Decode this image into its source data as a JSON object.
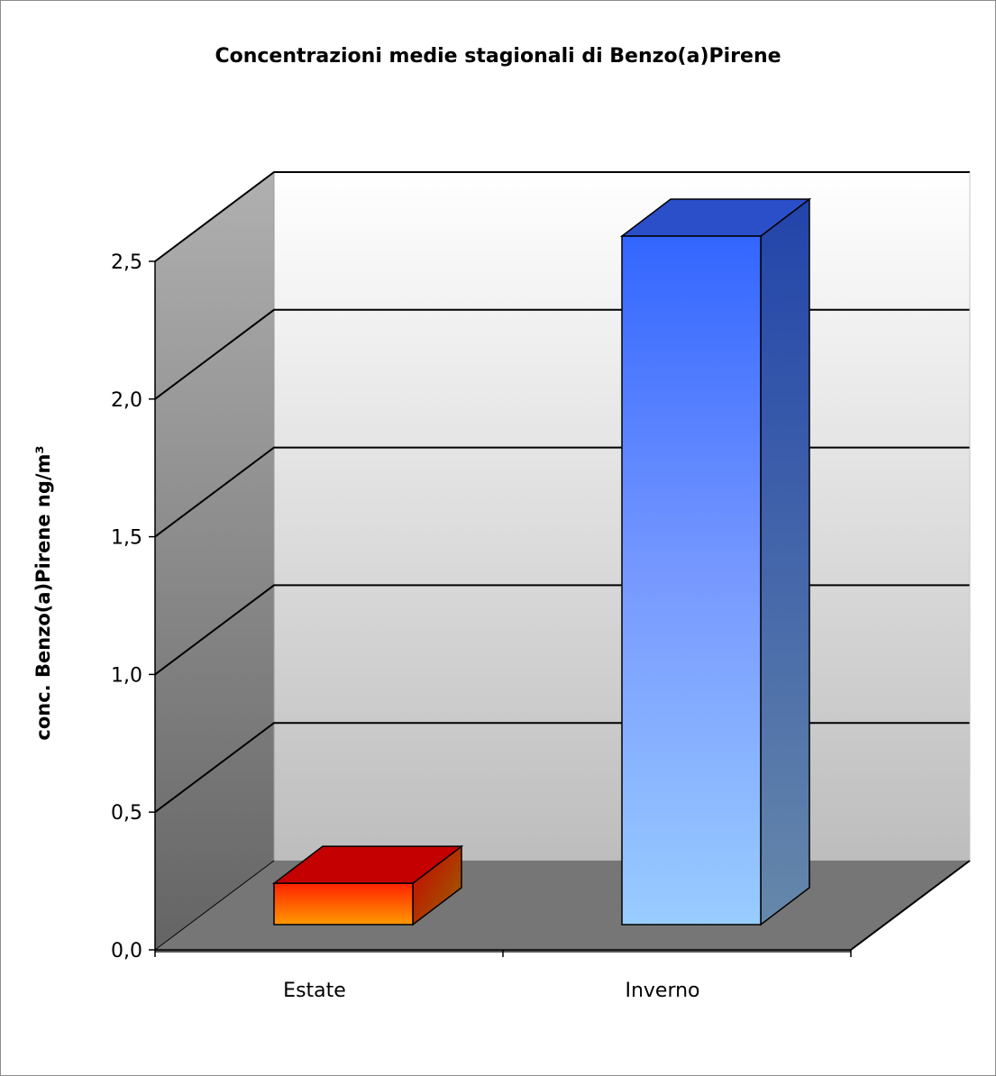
{
  "chart_data": {
    "type": "bar",
    "title": "Concentrazioni medie stagionali di Benzo(a)Pirene",
    "xlabel": "",
    "ylabel": "conc. Benzo(a)Pirene ng/m³",
    "categories": [
      "Estate",
      "Inverno"
    ],
    "values": [
      0.15,
      2.5
    ],
    "ylim": [
      0,
      2.5
    ],
    "yticks": [
      "0,0",
      "0,5",
      "1,0",
      "1,5",
      "2,0",
      "2,5"
    ],
    "grid": true,
    "legend": "none",
    "bar_colors": [
      "#e23a00",
      "#3a6bff"
    ]
  }
}
